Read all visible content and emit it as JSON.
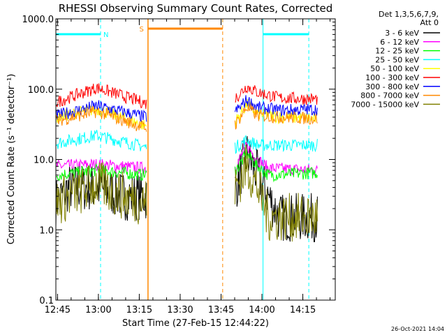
{
  "chart_data": {
    "type": "line",
    "title": "RHESSI Observing Summary Count Rates, Corrected",
    "xlabel": "Start Time (27-Feb-15 12:44:22)",
    "ylabel": "Corrected Count Rate (s⁻¹ detector⁻¹)",
    "yscale": "log",
    "ylim": [
      0.1,
      1000.0
    ],
    "xlim_minutes_after_start": [
      0,
      102.5
    ],
    "x_ticks": [
      {
        "label": "12:45",
        "min": 0.6
      },
      {
        "label": "13:00",
        "min": 15.6
      },
      {
        "label": "13:15",
        "min": 30.6
      },
      {
        "label": "13:30",
        "min": 45.6
      },
      {
        "label": "13:45",
        "min": 60.6
      },
      {
        "label": "14:00",
        "min": 75.6
      },
      {
        "label": "14:15",
        "min": 90.6
      }
    ],
    "y_ticks": [
      "0.1",
      "1.0",
      "10.0",
      "100.0",
      "1000.0"
    ],
    "legend_header": [
      "Det 1,3,5,6,7,9,",
      "Att 0"
    ],
    "legend_position": "right",
    "series": [
      {
        "name": "3 - 6 keV",
        "color": "#000000",
        "values": [
          [
            0,
            2.5
          ],
          [
            5,
            4
          ],
          [
            15,
            4
          ],
          [
            25,
            3
          ],
          [
            33,
            3
          ],
          [
            66,
            4
          ],
          [
            70,
            12
          ],
          [
            74,
            6
          ],
          [
            78,
            3
          ],
          [
            82,
            1.5
          ],
          [
            96,
            1.5
          ]
        ]
      },
      {
        "name": "6 - 12 keV",
        "color": "#ff00ff",
        "values": [
          [
            0,
            8
          ],
          [
            15,
            8.5
          ],
          [
            33,
            7.5
          ],
          [
            66,
            8
          ],
          [
            70,
            16
          ],
          [
            74,
            10
          ],
          [
            78,
            7.5
          ],
          [
            96,
            7
          ]
        ]
      },
      {
        "name": "12 - 25 keV",
        "color": "#00ff00",
        "values": [
          [
            0,
            6
          ],
          [
            15,
            7
          ],
          [
            33,
            6
          ],
          [
            66,
            7
          ],
          [
            70,
            12
          ],
          [
            74,
            8
          ],
          [
            78,
            6
          ],
          [
            96,
            6.5
          ]
        ]
      },
      {
        "name": "25 - 50 keV",
        "color": "#00ffff",
        "values": [
          [
            0,
            17
          ],
          [
            15,
            22
          ],
          [
            33,
            15
          ],
          [
            66,
            15
          ],
          [
            70,
            19
          ],
          [
            74,
            16
          ],
          [
            96,
            16
          ]
        ]
      },
      {
        "name": "50 - 100 keV",
        "color": "#ffff00",
        "values": [
          [
            0,
            40
          ],
          [
            15,
            52
          ],
          [
            33,
            30
          ],
          [
            66,
            35
          ],
          [
            70,
            60
          ],
          [
            74,
            45
          ],
          [
            82,
            40
          ],
          [
            96,
            38
          ]
        ]
      },
      {
        "name": "100 - 300 keV",
        "color": "#ff0000",
        "values": [
          [
            0,
            65
          ],
          [
            15,
            105
          ],
          [
            33,
            63
          ],
          [
            66,
            75
          ],
          [
            70,
            110
          ],
          [
            74,
            90
          ],
          [
            82,
            75
          ],
          [
            96,
            72
          ]
        ]
      },
      {
        "name": "300 - 800 keV",
        "color": "#0000ff",
        "values": [
          [
            0,
            42
          ],
          [
            15,
            58
          ],
          [
            33,
            40
          ],
          [
            66,
            48
          ],
          [
            70,
            70
          ],
          [
            74,
            55
          ],
          [
            82,
            50
          ],
          [
            96,
            52
          ]
        ]
      },
      {
        "name": "800 - 7000 keV",
        "color": "#ff8800",
        "values": [
          [
            0,
            35
          ],
          [
            15,
            48
          ],
          [
            33,
            28
          ],
          [
            66,
            32
          ],
          [
            70,
            55
          ],
          [
            74,
            42
          ],
          [
            82,
            40
          ],
          [
            96,
            38
          ]
        ]
      },
      {
        "name": "7000 - 15000 keV",
        "color": "#808000",
        "values": [
          [
            0,
            2.5
          ],
          [
            5,
            3
          ],
          [
            15,
            4.5
          ],
          [
            25,
            3
          ],
          [
            33,
            2.5
          ],
          [
            66,
            4
          ],
          [
            70,
            8
          ],
          [
            74,
            4
          ],
          [
            78,
            1.5
          ],
          [
            82,
            1.5
          ],
          [
            96,
            1.5
          ]
        ]
      }
    ],
    "annotations": [
      {
        "label": "N",
        "kind": "night",
        "color": "#00ffff",
        "start_min": 0,
        "end_min": 16.4
      },
      {
        "label": "",
        "kind": "night",
        "color": "#00ffff",
        "start_min": 76.0,
        "end_min": 92.8
      },
      {
        "label": "S",
        "kind": "saa",
        "color": "#ff8800",
        "start_min": 33.8,
        "end_min": 61.2
      }
    ]
  },
  "footer_date": "26-Oct-2021 14:04"
}
